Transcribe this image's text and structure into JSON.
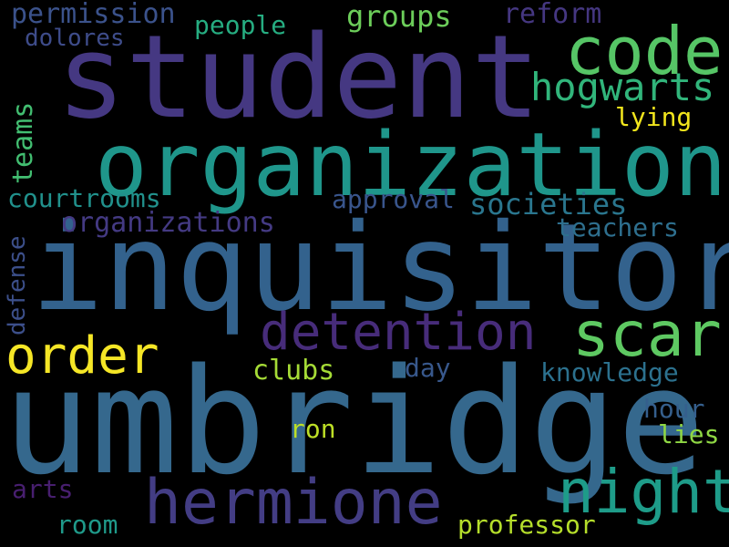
{
  "words": [
    {
      "text": "umbridge",
      "color": "#35688d"
    },
    {
      "text": "inquisitor",
      "color": "#33628d"
    },
    {
      "text": "student",
      "color": "#453882"
    },
    {
      "text": "organization",
      "color": "#1f968b"
    },
    {
      "text": "code",
      "color": "#56c566"
    },
    {
      "text": "hermione",
      "color": "#433d84"
    },
    {
      "text": "detention",
      "color": "#472c7a"
    },
    {
      "text": "scar",
      "color": "#5ec962"
    },
    {
      "text": "night",
      "color": "#1e9c89"
    },
    {
      "text": "order",
      "color": "#f5e626"
    },
    {
      "text": "hogwarts",
      "color": "#31b57b"
    },
    {
      "text": "groups",
      "color": "#6ccd5a"
    },
    {
      "text": "permission",
      "color": "#3b528b"
    },
    {
      "text": "reform",
      "color": "#453781"
    },
    {
      "text": "people",
      "color": "#26ad81"
    },
    {
      "text": "dolores",
      "color": "#3e4c8a"
    },
    {
      "text": "lying",
      "color": "#f1e51d"
    },
    {
      "text": "teams",
      "color": "#42be71"
    },
    {
      "text": "courtrooms",
      "color": "#21918c"
    },
    {
      "text": "approval",
      "color": "#39558c"
    },
    {
      "text": "societies",
      "color": "#2a768e"
    },
    {
      "text": "organizations",
      "color": "#443a83"
    },
    {
      "text": "teachers",
      "color": "#2e6f8e"
    },
    {
      "text": "defense",
      "color": "#3c4f8a"
    },
    {
      "text": "clubs",
      "color": "#a5db36"
    },
    {
      "text": "day",
      "color": "#38588c"
    },
    {
      "text": "knowledge",
      "color": "#2c718e"
    },
    {
      "text": "hour",
      "color": "#355f8d"
    },
    {
      "text": "ron",
      "color": "#bddf26"
    },
    {
      "text": "lies",
      "color": "#8fd744"
    },
    {
      "text": "arts",
      "color": "#481f70"
    },
    {
      "text": "room",
      "color": "#1f9a8a"
    },
    {
      "text": "professor",
      "color": "#b5de2b"
    }
  ]
}
